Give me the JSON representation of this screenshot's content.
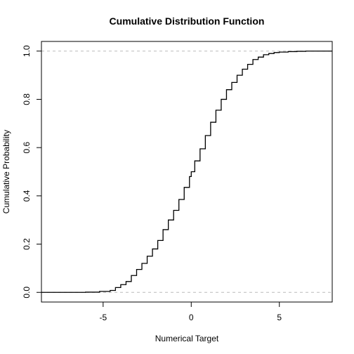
{
  "chart_data": {
    "type": "line",
    "title": "Cumulative Distribution Function",
    "xlabel": "Numerical Target",
    "ylabel": "Cumulative Probability",
    "xlim": [
      -8.5,
      8.0
    ],
    "ylim": [
      -0.04,
      1.04
    ],
    "x_ticks": [
      -5,
      0,
      5
    ],
    "x_tick_labels": [
      "-5",
      "0",
      "5"
    ],
    "y_ticks": [
      0.0,
      0.2,
      0.4,
      0.6,
      0.8,
      1.0
    ],
    "y_tick_labels": [
      "0.0",
      "0.2",
      "0.4",
      "0.6",
      "0.8",
      "1.0"
    ],
    "reference_lines": [
      0,
      1
    ],
    "grid": false,
    "series": [
      {
        "color": "#000000",
        "step": true,
        "x": [
          -8.5,
          -7.0,
          -6.0,
          -5.2,
          -4.6,
          -4.3,
          -4.0,
          -3.7,
          -3.4,
          -3.1,
          -2.8,
          -2.5,
          -2.2,
          -1.9,
          -1.6,
          -1.3,
          -1.0,
          -0.7,
          -0.4,
          -0.1,
          0.0,
          0.2,
          0.5,
          0.8,
          1.1,
          1.4,
          1.7,
          2.0,
          2.3,
          2.6,
          2.9,
          3.2,
          3.5,
          3.8,
          4.1,
          4.4,
          4.7,
          5.0,
          5.5,
          6.0,
          6.5,
          8.0
        ],
        "y": [
          0.0,
          0.0,
          0.001,
          0.004,
          0.008,
          0.02,
          0.032,
          0.045,
          0.07,
          0.095,
          0.12,
          0.15,
          0.18,
          0.215,
          0.26,
          0.3,
          0.34,
          0.385,
          0.435,
          0.48,
          0.5,
          0.545,
          0.595,
          0.65,
          0.705,
          0.755,
          0.8,
          0.84,
          0.87,
          0.9,
          0.925,
          0.945,
          0.965,
          0.975,
          0.985,
          0.99,
          0.994,
          0.996,
          0.998,
          0.999,
          1.0,
          1.0
        ]
      }
    ]
  }
}
